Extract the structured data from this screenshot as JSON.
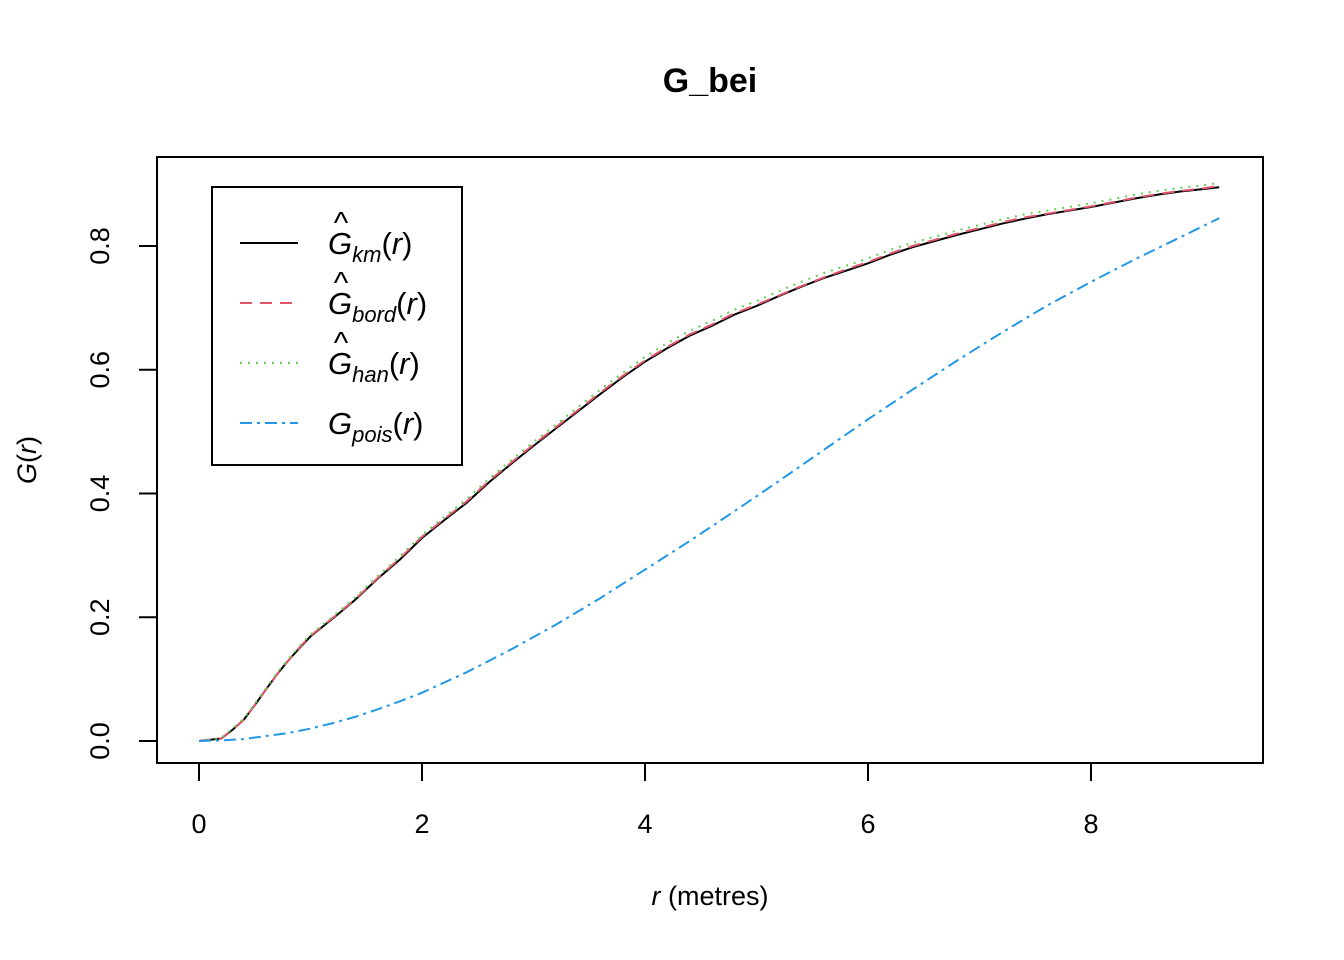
{
  "chart_data": {
    "type": "line",
    "title": "G_bei",
    "xlabel": {
      "var": "r",
      "unit": " (metres)"
    },
    "ylabel": {
      "func": "G",
      "var": "r"
    },
    "xlim": [
      0,
      9.15
    ],
    "ylim": [
      0,
      0.9
    ],
    "x_ticks": [
      0,
      2,
      4,
      6,
      8
    ],
    "y_ticks": [
      0.0,
      0.2,
      0.4,
      0.6,
      0.8
    ],
    "x_tick_labels": [
      "0",
      "2",
      "4",
      "6",
      "8"
    ],
    "y_tick_labels": [
      "0.0",
      "0.2",
      "0.4",
      "0.6",
      "0.8"
    ],
    "grid": false,
    "legend_position": "top-left",
    "series": [
      {
        "name": "km",
        "hat": true,
        "color": "#000000",
        "dash": "",
        "x": [
          0,
          0.2,
          0.3,
          0.4,
          0.5,
          0.6,
          0.7,
          0.8,
          0.9,
          1.0,
          1.2,
          1.4,
          1.6,
          1.8,
          2.0,
          2.2,
          2.4,
          2.6,
          2.8,
          3.0,
          3.2,
          3.4,
          3.6,
          3.8,
          4.0,
          4.2,
          4.4,
          4.6,
          4.8,
          5.0,
          5.2,
          5.4,
          5.6,
          5.8,
          6.0,
          6.2,
          6.4,
          6.6,
          6.8,
          7.0,
          7.2,
          7.4,
          7.6,
          7.8,
          8.0,
          8.2,
          8.4,
          8.6,
          8.8,
          9.0,
          9.15
        ],
        "y": [
          0,
          0.004,
          0.018,
          0.034,
          0.058,
          0.083,
          0.108,
          0.13,
          0.15,
          0.169,
          0.198,
          0.228,
          0.262,
          0.293,
          0.328,
          0.357,
          0.385,
          0.418,
          0.448,
          0.477,
          0.505,
          0.533,
          0.561,
          0.588,
          0.613,
          0.635,
          0.655,
          0.671,
          0.689,
          0.703,
          0.719,
          0.734,
          0.748,
          0.76,
          0.772,
          0.786,
          0.798,
          0.808,
          0.818,
          0.827,
          0.836,
          0.844,
          0.851,
          0.857,
          0.863,
          0.87,
          0.877,
          0.883,
          0.888,
          0.892,
          0.895
        ]
      },
      {
        "name": "bord",
        "hat": true,
        "color": "#DF536B",
        "dash": "12,8",
        "x": [
          0,
          0.2,
          0.3,
          0.4,
          0.5,
          0.6,
          0.7,
          0.8,
          0.9,
          1.0,
          1.2,
          1.4,
          1.6,
          1.8,
          2.0,
          2.2,
          2.4,
          2.6,
          2.8,
          3.0,
          3.2,
          3.4,
          3.6,
          3.8,
          4.0,
          4.2,
          4.4,
          4.6,
          4.8,
          5.0,
          5.2,
          5.4,
          5.6,
          5.8,
          6.0,
          6.2,
          6.4,
          6.6,
          6.8,
          7.0,
          7.2,
          7.4,
          7.6,
          7.8,
          8.0,
          8.2,
          8.4,
          8.6,
          8.8,
          9.0,
          9.15
        ],
        "y": [
          0,
          0.004,
          0.018,
          0.034,
          0.058,
          0.083,
          0.108,
          0.13,
          0.151,
          0.17,
          0.199,
          0.229,
          0.263,
          0.295,
          0.33,
          0.359,
          0.387,
          0.42,
          0.45,
          0.479,
          0.507,
          0.535,
          0.563,
          0.59,
          0.615,
          0.637,
          0.657,
          0.673,
          0.691,
          0.705,
          0.72,
          0.735,
          0.749,
          0.762,
          0.774,
          0.788,
          0.8,
          0.81,
          0.82,
          0.829,
          0.838,
          0.846,
          0.852,
          0.858,
          0.864,
          0.871,
          0.878,
          0.884,
          0.889,
          0.893,
          0.897
        ]
      },
      {
        "name": "han",
        "hat": true,
        "color": "#61D04F",
        "dash": "2,6",
        "x": [
          0,
          0.2,
          0.3,
          0.4,
          0.5,
          0.6,
          0.7,
          0.8,
          0.9,
          1.0,
          1.2,
          1.4,
          1.6,
          1.8,
          2.0,
          2.2,
          2.4,
          2.6,
          2.8,
          3.0,
          3.2,
          3.4,
          3.6,
          3.8,
          4.0,
          4.2,
          4.4,
          4.6,
          4.8,
          5.0,
          5.2,
          5.4,
          5.6,
          5.8,
          6.0,
          6.2,
          6.4,
          6.6,
          6.8,
          7.0,
          7.2,
          7.4,
          7.6,
          7.8,
          8.0,
          8.2,
          8.4,
          8.6,
          8.8,
          9.0,
          9.15
        ],
        "y": [
          0,
          0.005,
          0.02,
          0.036,
          0.06,
          0.085,
          0.11,
          0.132,
          0.153,
          0.172,
          0.201,
          0.232,
          0.266,
          0.298,
          0.333,
          0.362,
          0.391,
          0.424,
          0.454,
          0.483,
          0.511,
          0.54,
          0.568,
          0.595,
          0.621,
          0.643,
          0.663,
          0.679,
          0.697,
          0.711,
          0.727,
          0.742,
          0.756,
          0.768,
          0.78,
          0.794,
          0.805,
          0.815,
          0.825,
          0.834,
          0.843,
          0.851,
          0.857,
          0.863,
          0.869,
          0.876,
          0.883,
          0.889,
          0.894,
          0.898,
          0.902
        ]
      },
      {
        "name": "pois",
        "hat": false,
        "color": "#2297E6",
        "dash": "12,5,3,5",
        "x": [
          0,
          0.2,
          0.4,
          0.6,
          0.8,
          1.0,
          1.2,
          1.4,
          1.6,
          1.8,
          2.0,
          2.4,
          2.8,
          3.2,
          3.6,
          4.0,
          4.4,
          4.8,
          5.2,
          5.6,
          6.0,
          6.4,
          6.8,
          7.2,
          7.6,
          8.0,
          8.4,
          8.8,
          9.15
        ],
        "y": [
          0,
          0.001,
          0.003,
          0.008,
          0.013,
          0.02,
          0.029,
          0.039,
          0.051,
          0.064,
          0.078,
          0.111,
          0.148,
          0.188,
          0.231,
          0.277,
          0.323,
          0.371,
          0.42,
          0.47,
          0.52,
          0.568,
          0.615,
          0.66,
          0.703,
          0.742,
          0.779,
          0.814,
          0.845
        ]
      }
    ]
  }
}
